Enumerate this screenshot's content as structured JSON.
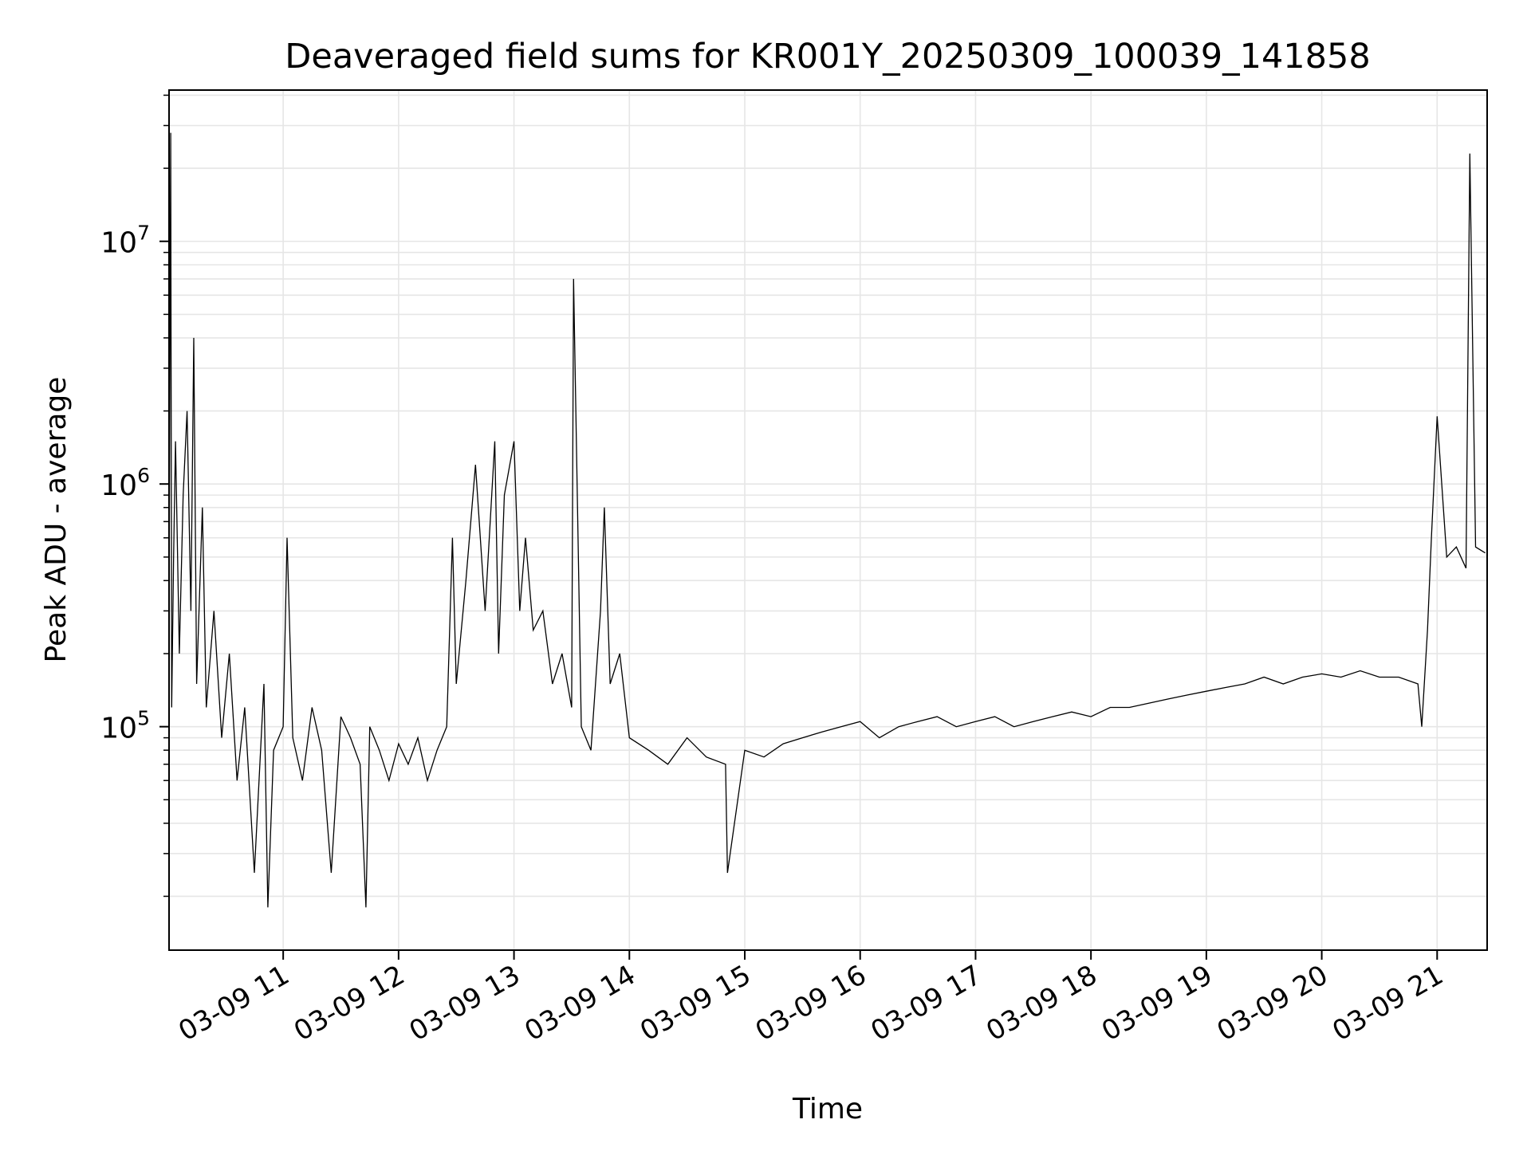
{
  "chart_data": {
    "type": "line",
    "title": "Deaveraged field sums for KR001Y_20250309_100039_141858",
    "xlabel": "Time",
    "ylabel": "Peak ADU - average",
    "yscale": "log",
    "x_is_datetime": true,
    "xlim": [
      "2025-03-09 10:00:39",
      "2025-03-09 21:26:00"
    ],
    "ylim": [
      12000,
      42000000
    ],
    "grid": true,
    "legend": "none",
    "line_color": "#000000",
    "grid_color": "#e6e6e6",
    "x_ticks": [
      {
        "value": "2025-03-09 11:00",
        "label": "03-09 11"
      },
      {
        "value": "2025-03-09 12:00",
        "label": "03-09 12"
      },
      {
        "value": "2025-03-09 13:00",
        "label": "03-09 13"
      },
      {
        "value": "2025-03-09 14:00",
        "label": "03-09 14"
      },
      {
        "value": "2025-03-09 15:00",
        "label": "03-09 15"
      },
      {
        "value": "2025-03-09 16:00",
        "label": "03-09 16"
      },
      {
        "value": "2025-03-09 17:00",
        "label": "03-09 17"
      },
      {
        "value": "2025-03-09 18:00",
        "label": "03-09 18"
      },
      {
        "value": "2025-03-09 19:00",
        "label": "03-09 19"
      },
      {
        "value": "2025-03-09 20:00",
        "label": "03-09 20"
      },
      {
        "value": "2025-03-09 21:00",
        "label": "03-09 21"
      }
    ],
    "y_ticks": [
      {
        "value": 100000,
        "base": "10",
        "exp": "5"
      },
      {
        "value": 1000000,
        "base": "10",
        "exp": "6"
      },
      {
        "value": 10000000,
        "base": "10",
        "exp": "7"
      }
    ],
    "series": [
      {
        "x": [
          "2025-03-09 10:00:39",
          "2025-03-09 10:01:30",
          "2025-03-09 10:02:00",
          "2025-03-09 10:03:00",
          "2025-03-09 10:04:00",
          "2025-03-09 10:06:00",
          "2025-03-09 10:08:00",
          "2025-03-09 10:10:00",
          "2025-03-09 10:12:00",
          "2025-03-09 10:13:30",
          "2025-03-09 10:15:00",
          "2025-03-09 10:18:00",
          "2025-03-09 10:20:00",
          "2025-03-09 10:24:00",
          "2025-03-09 10:28:00",
          "2025-03-09 10:32:00",
          "2025-03-09 10:36:00",
          "2025-03-09 10:40:00",
          "2025-03-09 10:45:00",
          "2025-03-09 10:50:00",
          "2025-03-09 10:52:00",
          "2025-03-09 10:55:00",
          "2025-03-09 11:00:00",
          "2025-03-09 11:02:00",
          "2025-03-09 11:05:00",
          "2025-03-09 11:10:00",
          "2025-03-09 11:15:00",
          "2025-03-09 11:20:00",
          "2025-03-09 11:25:00",
          "2025-03-09 11:30:00",
          "2025-03-09 11:35:00",
          "2025-03-09 11:40:00",
          "2025-03-09 11:43:00",
          "2025-03-09 11:45:00",
          "2025-03-09 11:50:00",
          "2025-03-09 11:55:00",
          "2025-03-09 12:00:00",
          "2025-03-09 12:05:00",
          "2025-03-09 12:10:00",
          "2025-03-09 12:15:00",
          "2025-03-09 12:20:00",
          "2025-03-09 12:25:00",
          "2025-03-09 12:28:00",
          "2025-03-09 12:30:00",
          "2025-03-09 12:35:00",
          "2025-03-09 12:40:00",
          "2025-03-09 12:45:00",
          "2025-03-09 12:50:00",
          "2025-03-09 12:52:00",
          "2025-03-09 12:55:00",
          "2025-03-09 13:00:00",
          "2025-03-09 13:03:00",
          "2025-03-09 13:06:00",
          "2025-03-09 13:10:00",
          "2025-03-09 13:15:00",
          "2025-03-09 13:20:00",
          "2025-03-09 13:25:00",
          "2025-03-09 13:30:00",
          "2025-03-09 13:31:00",
          "2025-03-09 13:35:00",
          "2025-03-09 13:40:00",
          "2025-03-09 13:45:00",
          "2025-03-09 13:47:00",
          "2025-03-09 13:50:00",
          "2025-03-09 13:55:00",
          "2025-03-09 14:00:00",
          "2025-03-09 14:10:00",
          "2025-03-09 14:20:00",
          "2025-03-09 14:30:00",
          "2025-03-09 14:40:00",
          "2025-03-09 14:50:00",
          "2025-03-09 14:51:00",
          "2025-03-09 15:00:00",
          "2025-03-09 15:10:00",
          "2025-03-09 15:20:00",
          "2025-03-09 15:30:00",
          "2025-03-09 15:40:00",
          "2025-03-09 15:50:00",
          "2025-03-09 16:00:00",
          "2025-03-09 16:10:00",
          "2025-03-09 16:20:00",
          "2025-03-09 16:30:00",
          "2025-03-09 16:40:00",
          "2025-03-09 16:50:00",
          "2025-03-09 17:00:00",
          "2025-03-09 17:10:00",
          "2025-03-09 17:20:00",
          "2025-03-09 17:30:00",
          "2025-03-09 17:40:00",
          "2025-03-09 17:50:00",
          "2025-03-09 18:00:00",
          "2025-03-09 18:10:00",
          "2025-03-09 18:20:00",
          "2025-03-09 18:30:00",
          "2025-03-09 18:40:00",
          "2025-03-09 18:50:00",
          "2025-03-09 19:00:00",
          "2025-03-09 19:10:00",
          "2025-03-09 19:20:00",
          "2025-03-09 19:30:00",
          "2025-03-09 19:40:00",
          "2025-03-09 19:50:00",
          "2025-03-09 20:00:00",
          "2025-03-09 20:10:00",
          "2025-03-09 20:20:00",
          "2025-03-09 20:30:00",
          "2025-03-09 20:40:00",
          "2025-03-09 20:50:00",
          "2025-03-09 20:52:00",
          "2025-03-09 20:55:00",
          "2025-03-09 20:57:00",
          "2025-03-09 21:00:00",
          "2025-03-09 21:05:00",
          "2025-03-09 21:10:00",
          "2025-03-09 21:15:00",
          "2025-03-09 21:17:00",
          "2025-03-09 21:20:00",
          "2025-03-09 21:25:00"
        ],
        "y": [
          300000,
          28000000,
          120000,
          500000,
          1500000,
          200000,
          900000,
          2000000,
          300000,
          4000000,
          150000,
          800000,
          120000,
          300000,
          90000,
          200000,
          60000,
          120000,
          25000,
          150000,
          18000,
          80000,
          100000,
          600000,
          90000,
          60000,
          120000,
          80000,
          25000,
          110000,
          90000,
          70000,
          18000,
          100000,
          80000,
          60000,
          85000,
          70000,
          90000,
          60000,
          80000,
          100000,
          600000,
          150000,
          400000,
          1200000,
          300000,
          1500000,
          200000,
          900000,
          1500000,
          300000,
          600000,
          250000,
          300000,
          150000,
          200000,
          120000,
          7000000,
          100000,
          80000,
          300000,
          800000,
          150000,
          200000,
          90000,
          80000,
          70000,
          90000,
          75000,
          70000,
          25000,
          80000,
          75000,
          85000,
          90000,
          95000,
          100000,
          105000,
          90000,
          100000,
          105000,
          110000,
          100000,
          105000,
          110000,
          100000,
          105000,
          110000,
          115000,
          110000,
          120000,
          120000,
          125000,
          130000,
          135000,
          140000,
          145000,
          150000,
          160000,
          150000,
          160000,
          165000,
          160000,
          170000,
          160000,
          160000,
          150000,
          100000,
          250000,
          600000,
          1900000,
          500000,
          550000,
          450000,
          23000000,
          550000,
          520000
        ]
      }
    ]
  }
}
